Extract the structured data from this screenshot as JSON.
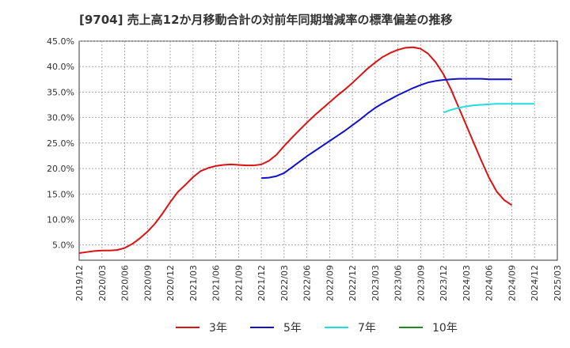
{
  "chart_data": {
    "type": "line",
    "title": "[9704]  売上高12か月移動合計の対前年同期増減率の標準偏差の推移",
    "xlabel": "",
    "ylabel": "",
    "ylim": [
      2.0,
      45.0
    ],
    "x_ticks": [
      "2019/12",
      "2020/03",
      "2020/06",
      "2020/09",
      "2020/12",
      "2021/03",
      "2021/06",
      "2021/09",
      "2021/12",
      "2022/03",
      "2022/06",
      "2022/09",
      "2022/12",
      "2023/03",
      "2023/06",
      "2023/09",
      "2023/12",
      "2024/03",
      "2024/06",
      "2024/09",
      "2024/12",
      "2025/03"
    ],
    "y_ticks": [
      "5.0%",
      "10.0%",
      "15.0%",
      "20.0%",
      "25.0%",
      "30.0%",
      "35.0%",
      "40.0%",
      "45.0%"
    ],
    "y_tick_values": [
      5,
      10,
      15,
      20,
      25,
      30,
      35,
      40,
      45
    ],
    "grid": true,
    "legend_position": "bottom",
    "series": [
      {
        "name": "3年",
        "color": "#dd1111",
        "points": [
          [
            "2019/12",
            3.4
          ],
          [
            "2020/01",
            3.6
          ],
          [
            "2020/02",
            3.8
          ],
          [
            "2020/03",
            3.9
          ],
          [
            "2020/04",
            3.9
          ],
          [
            "2020/05",
            4.0
          ],
          [
            "2020/06",
            4.4
          ],
          [
            "2020/07",
            5.2
          ],
          [
            "2020/08",
            6.3
          ],
          [
            "2020/09",
            7.6
          ],
          [
            "2020/10",
            9.2
          ],
          [
            "2020/11",
            11.2
          ],
          [
            "2020/12",
            13.4
          ],
          [
            "2020/13",
            15.4
          ],
          [
            "2021/02",
            16.8
          ],
          [
            "2021/03",
            18.3
          ],
          [
            "2021/04",
            19.5
          ],
          [
            "2021/05",
            20.1
          ],
          [
            "2021/06",
            20.5
          ],
          [
            "2021/07",
            20.7
          ],
          [
            "2021/08",
            20.8
          ],
          [
            "2021/09",
            20.7
          ],
          [
            "2021/10",
            20.6
          ],
          [
            "2021/11",
            20.6
          ],
          [
            "2021/12",
            20.8
          ],
          [
            "2022/01",
            21.5
          ],
          [
            "2022/02",
            22.7
          ],
          [
            "2022/03",
            24.4
          ],
          [
            "2022/04",
            26.0
          ],
          [
            "2022/05",
            27.5
          ],
          [
            "2022/06",
            29.0
          ],
          [
            "2022/07",
            30.4
          ],
          [
            "2022/08",
            31.7
          ],
          [
            "2022/09",
            33.0
          ],
          [
            "2022/10",
            34.3
          ],
          [
            "2022/11",
            35.5
          ],
          [
            "2022/12",
            36.8
          ],
          [
            "2023/01",
            38.2
          ],
          [
            "2023/02",
            39.6
          ],
          [
            "2023/03",
            40.8
          ],
          [
            "2023/04",
            41.9
          ],
          [
            "2023/05",
            42.7
          ],
          [
            "2023/06",
            43.3
          ],
          [
            "2023/07",
            43.7
          ],
          [
            "2023/08",
            43.8
          ],
          [
            "2023/09",
            43.5
          ],
          [
            "2023/10",
            42.5
          ],
          [
            "2023/11",
            40.8
          ],
          [
            "2023/12",
            38.5
          ],
          [
            "2024/01",
            35.5
          ],
          [
            "2024/02",
            32.0
          ],
          [
            "2024/03",
            28.5
          ],
          [
            "2024/04",
            25.0
          ],
          [
            "2024/05",
            21.5
          ],
          [
            "2024/06",
            18.2
          ],
          [
            "2024/07",
            15.5
          ],
          [
            "2024/08",
            13.8
          ],
          [
            "2024/09",
            12.8
          ]
        ]
      },
      {
        "name": "5年",
        "color": "#1111cc",
        "points": [
          [
            "2021/12",
            18.1
          ],
          [
            "2022/01",
            18.2
          ],
          [
            "2022/02",
            18.5
          ],
          [
            "2022/03",
            19.1
          ],
          [
            "2022/04",
            20.2
          ],
          [
            "2022/05",
            21.3
          ],
          [
            "2022/06",
            22.4
          ],
          [
            "2022/07",
            23.4
          ],
          [
            "2022/08",
            24.4
          ],
          [
            "2022/09",
            25.4
          ],
          [
            "2022/10",
            26.4
          ],
          [
            "2022/11",
            27.4
          ],
          [
            "2022/12",
            28.5
          ],
          [
            "2023/01",
            29.6
          ],
          [
            "2023/02",
            30.8
          ],
          [
            "2023/03",
            31.9
          ],
          [
            "2023/04",
            32.8
          ],
          [
            "2023/05",
            33.6
          ],
          [
            "2023/06",
            34.4
          ],
          [
            "2023/07",
            35.1
          ],
          [
            "2023/08",
            35.8
          ],
          [
            "2023/09",
            36.4
          ],
          [
            "2023/10",
            36.9
          ],
          [
            "2023/11",
            37.2
          ],
          [
            "2023/12",
            37.4
          ],
          [
            "2024/01",
            37.5
          ],
          [
            "2024/02",
            37.6
          ],
          [
            "2024/03",
            37.6
          ],
          [
            "2024/04",
            37.6
          ],
          [
            "2024/05",
            37.6
          ],
          [
            "2024/06",
            37.5
          ],
          [
            "2024/07",
            37.5
          ],
          [
            "2024/08",
            37.5
          ],
          [
            "2024/09",
            37.5
          ]
        ]
      },
      {
        "name": "7年",
        "color": "#22dddd",
        "points": [
          [
            "2023/12",
            31.0
          ],
          [
            "2024/01",
            31.5
          ],
          [
            "2024/02",
            31.9
          ],
          [
            "2024/03",
            32.2
          ],
          [
            "2024/04",
            32.4
          ],
          [
            "2024/05",
            32.5
          ],
          [
            "2024/06",
            32.6
          ],
          [
            "2024/07",
            32.7
          ],
          [
            "2024/08",
            32.7
          ],
          [
            "2024/09",
            32.7
          ],
          [
            "2024/10",
            32.7
          ],
          [
            "2024/11",
            32.7
          ],
          [
            "2024/12",
            32.7
          ]
        ]
      },
      {
        "name": "10年",
        "color": "#228822",
        "points": []
      }
    ]
  }
}
